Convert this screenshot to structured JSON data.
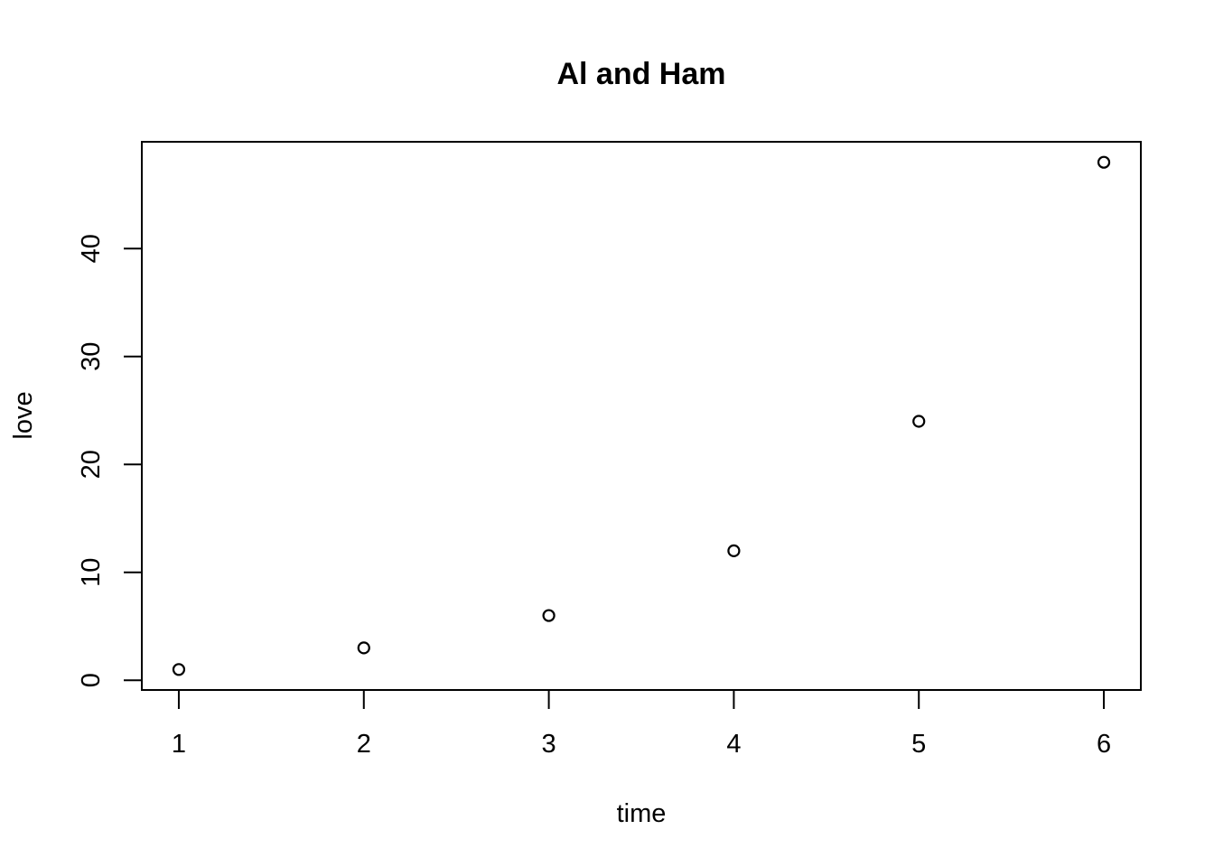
{
  "chart_data": {
    "type": "scatter",
    "title": "Al and Ham",
    "xlabel": "time",
    "ylabel": "love",
    "x": [
      1,
      2,
      3,
      4,
      5,
      6
    ],
    "y": [
      1,
      3,
      6,
      12,
      24,
      48
    ],
    "xlim": [
      0.8,
      6.2
    ],
    "ylim": [
      -0.9,
      49.9
    ],
    "x_ticks": [
      1,
      2,
      3,
      4,
      5,
      6
    ],
    "y_ticks": [
      0,
      10,
      20,
      30,
      40
    ],
    "grid": false,
    "legend": "none",
    "marker": "open-circle",
    "colors": {
      "point": "#000000",
      "axis": "#000000",
      "background": "#ffffff"
    }
  }
}
